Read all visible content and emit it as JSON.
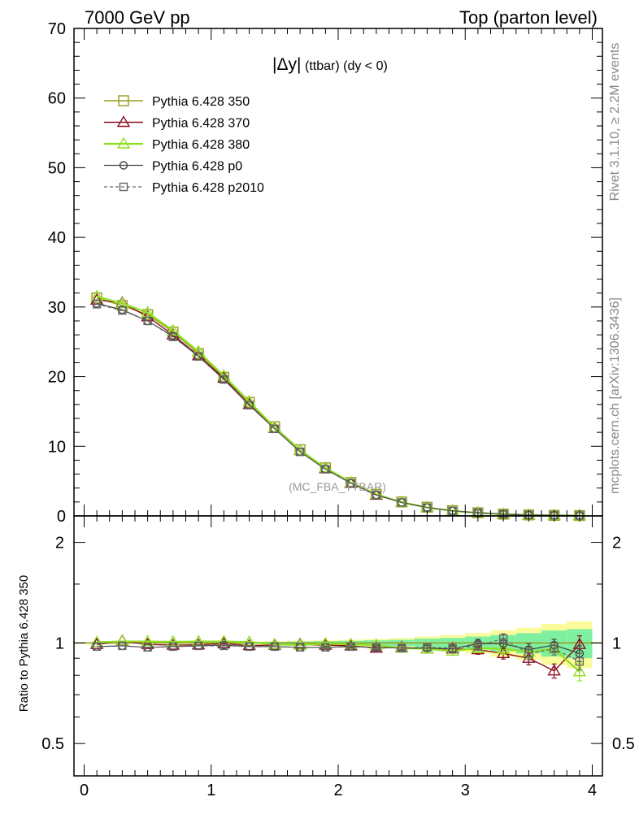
{
  "header": {
    "left": "7000 GeV pp",
    "right": "Top (parton level)"
  },
  "side_labels": {
    "rivet": "Rivet 3.1.10, ≥ 2.2M events",
    "mcplots": "mcplots.cern.ch [arXiv:1306.3436]"
  },
  "plot_title": {
    "main": "|Δy|",
    "sub": "(ttbar) (dy < 0)"
  },
  "watermark": "(MC_FBA_TTBAR)",
  "colors": {
    "p350": "#9a9a22",
    "p370": "#8b1020",
    "p380": "#8fe01e",
    "p0": "#444444",
    "p2010": "#666666",
    "band_inner": "#7ef0a0",
    "band_outer": "#fbfb9a"
  },
  "chart_data": [
    {
      "type": "line",
      "x": [
        0.1,
        0.3,
        0.5,
        0.7,
        0.9,
        1.1,
        1.3,
        1.5,
        1.7,
        1.9,
        2.1,
        2.3,
        2.5,
        2.7,
        2.9,
        3.1,
        3.3,
        3.5,
        3.7,
        3.9
      ],
      "xlim": [
        -0.08,
        4.08
      ],
      "ylim": [
        0,
        70
      ],
      "yticks": [
        0,
        10,
        20,
        30,
        40,
        50,
        60,
        70
      ],
      "series": [
        {
          "name": "Pythia 6.428 350",
          "marker": "square",
          "values": [
            31.3,
            30.2,
            28.9,
            26.4,
            23.3,
            19.9,
            16.3,
            12.8,
            9.5,
            6.9,
            4.8,
            3.1,
            2.0,
            1.25,
            0.75,
            0.45,
            0.25,
            0.14,
            0.08,
            0.05
          ]
        },
        {
          "name": "Pythia 6.428 370",
          "marker": "triangle",
          "values": [
            31.0,
            30.6,
            28.6,
            26.0,
            23.0,
            19.8,
            16.0,
            12.6,
            9.4,
            6.8,
            4.7,
            3.0,
            1.95,
            1.2,
            0.72,
            0.43,
            0.23,
            0.13,
            0.07,
            0.05
          ]
        },
        {
          "name": "Pythia 6.428 380",
          "marker": "triangle",
          "values": [
            31.5,
            30.5,
            29.2,
            26.6,
            23.6,
            20.1,
            16.4,
            12.7,
            9.4,
            6.9,
            4.8,
            3.1,
            1.95,
            1.2,
            0.72,
            0.43,
            0.24,
            0.13,
            0.07,
            0.04
          ]
        },
        {
          "name": "Pythia 6.428 p0",
          "marker": "circle",
          "values": [
            30.5,
            29.6,
            28.0,
            25.8,
            22.9,
            19.6,
            15.9,
            12.5,
            9.2,
            6.7,
            4.7,
            3.0,
            1.93,
            1.2,
            0.72,
            0.45,
            0.25,
            0.13,
            0.08,
            0.05
          ]
        },
        {
          "name": "Pythia 6.428 p2010",
          "marker": "square",
          "values": [
            30.4,
            29.5,
            28.0,
            25.7,
            22.9,
            19.6,
            15.9,
            12.5,
            9.2,
            6.7,
            4.7,
            3.0,
            1.93,
            1.2,
            0.72,
            0.46,
            0.26,
            0.13,
            0.08,
            0.05
          ]
        }
      ]
    },
    {
      "type": "line",
      "x": [
        0.1,
        0.3,
        0.5,
        0.7,
        0.9,
        1.1,
        1.3,
        1.5,
        1.7,
        1.9,
        2.1,
        2.3,
        2.5,
        2.7,
        2.9,
        3.1,
        3.3,
        3.5,
        3.7,
        3.9
      ],
      "xlim": [
        -0.08,
        4.08
      ],
      "ylim": [
        0.4,
        2.4
      ],
      "yscale": "log",
      "yticks": [
        0.5,
        1,
        2
      ],
      "xticks": [
        0,
        1,
        2,
        3,
        4
      ],
      "ylabel": "Ratio to Pythia 6.428 350",
      "band": {
        "x_edges": [
          0.0,
          0.2,
          0.4,
          0.6,
          0.8,
          1.0,
          1.2,
          1.4,
          1.6,
          1.8,
          2.0,
          2.2,
          2.4,
          2.6,
          2.8,
          3.0,
          3.2,
          3.4,
          3.6,
          3.8,
          4.0
        ],
        "inner": [
          0.004,
          0.004,
          0.004,
          0.005,
          0.005,
          0.006,
          0.007,
          0.008,
          0.01,
          0.012,
          0.015,
          0.018,
          0.022,
          0.03,
          0.035,
          0.045,
          0.055,
          0.07,
          0.09,
          0.1
        ],
        "outer": [
          0.006,
          0.006,
          0.006,
          0.007,
          0.008,
          0.009,
          0.01,
          0.012,
          0.015,
          0.018,
          0.022,
          0.027,
          0.033,
          0.045,
          0.055,
          0.07,
          0.09,
          0.11,
          0.14,
          0.16
        ]
      },
      "series": [
        {
          "name": "Pythia 6.428 370",
          "marker": "triangle",
          "values": [
            0.99,
            1.013,
            0.99,
            0.985,
            0.987,
            0.995,
            0.982,
            0.985,
            0.99,
            0.985,
            0.98,
            0.965,
            0.97,
            0.96,
            0.96,
            0.955,
            0.93,
            0.9,
            0.825,
            0.99
          ],
          "errors": [
            0.003,
            0.003,
            0.003,
            0.003,
            0.004,
            0.004,
            0.005,
            0.006,
            0.007,
            0.009,
            0.011,
            0.013,
            0.016,
            0.02,
            0.025,
            0.03,
            0.035,
            0.04,
            0.04,
            0.06
          ]
        },
        {
          "name": "Pythia 6.428 380",
          "marker": "triangle",
          "values": [
            1.005,
            1.01,
            1.01,
            1.008,
            1.01,
            1.01,
            1.006,
            0.99,
            0.985,
            0.995,
            0.99,
            0.985,
            0.965,
            0.96,
            0.945,
            0.965,
            0.96,
            0.94,
            0.96,
            0.82
          ],
          "errors": [
            0.003,
            0.003,
            0.003,
            0.003,
            0.004,
            0.004,
            0.005,
            0.006,
            0.007,
            0.009,
            0.011,
            0.013,
            0.016,
            0.02,
            0.025,
            0.03,
            0.035,
            0.04,
            0.04,
            0.05
          ]
        },
        {
          "name": "Pythia 6.428 p0",
          "marker": "circle",
          "values": [
            0.975,
            0.98,
            0.97,
            0.975,
            0.98,
            0.985,
            0.975,
            0.975,
            0.97,
            0.97,
            0.975,
            0.97,
            0.965,
            0.965,
            0.96,
            0.995,
            0.995,
            0.955,
            0.985,
            0.93
          ],
          "errors": [
            0.003,
            0.003,
            0.003,
            0.003,
            0.004,
            0.004,
            0.005,
            0.006,
            0.007,
            0.009,
            0.011,
            0.013,
            0.016,
            0.02,
            0.025,
            0.03,
            0.035,
            0.04,
            0.04,
            0.05
          ]
        },
        {
          "name": "Pythia 6.428 p2010",
          "marker": "square",
          "values": [
            0.975,
            0.98,
            0.97,
            0.975,
            0.98,
            0.98,
            0.975,
            0.975,
            0.97,
            0.97,
            0.975,
            0.97,
            0.965,
            0.97,
            0.965,
            0.98,
            1.03,
            0.93,
            0.96,
            0.88
          ],
          "errors": [
            0.003,
            0.003,
            0.003,
            0.003,
            0.004,
            0.004,
            0.005,
            0.006,
            0.007,
            0.009,
            0.011,
            0.013,
            0.016,
            0.02,
            0.025,
            0.03,
            0.035,
            0.04,
            0.04,
            0.05
          ]
        }
      ]
    }
  ]
}
